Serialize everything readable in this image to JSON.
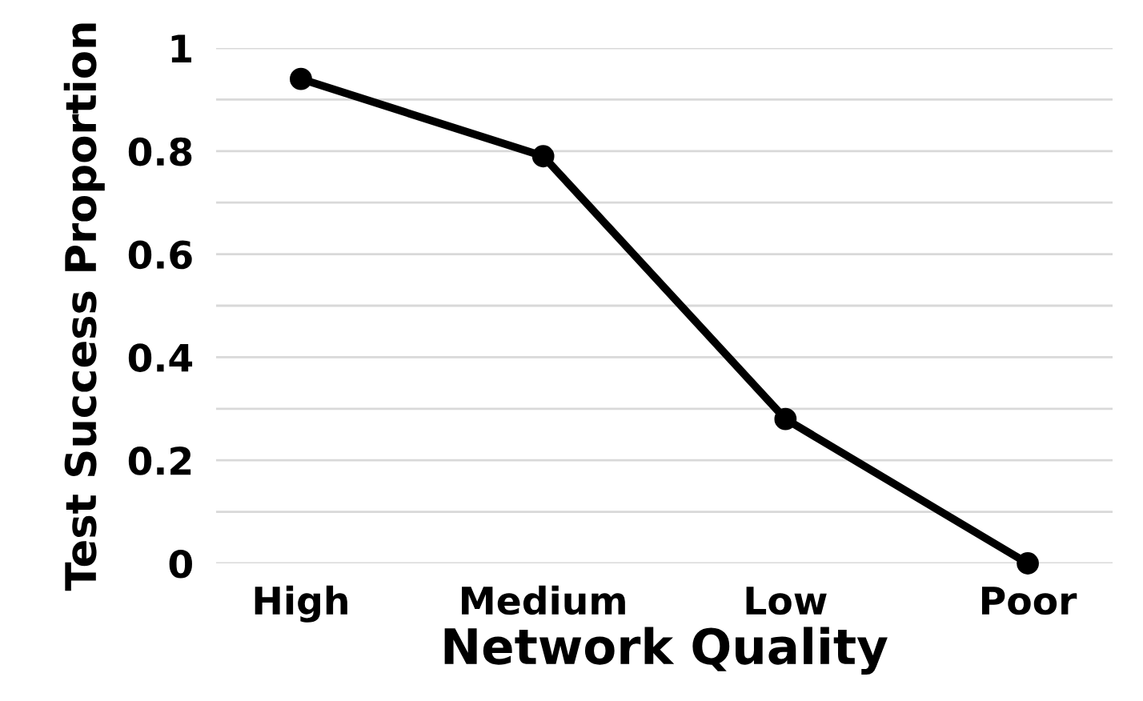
{
  "chart_data": {
    "type": "line",
    "xlabel": "Network Quality",
    "ylabel": "Test Success Proportion",
    "categories": [
      "High",
      "Medium",
      "Low",
      "Poor"
    ],
    "series": [
      {
        "color": "#000000",
        "values": [
          0.94,
          0.79,
          0.28,
          0.0
        ]
      }
    ],
    "ylim": [
      0,
      1
    ],
    "yticks": [
      0,
      {
        "value": 0.1,
        "label": null
      },
      0.2,
      {
        "value": 0.3,
        "label": null
      },
      0.4,
      {
        "value": 0.5,
        "label": null
      },
      0.6,
      {
        "value": 0.7,
        "label": null
      },
      0.8,
      {
        "value": 0.9,
        "label": null
      },
      1
    ],
    "grid": "y",
    "marker": "circle",
    "line_style": "solid"
  }
}
